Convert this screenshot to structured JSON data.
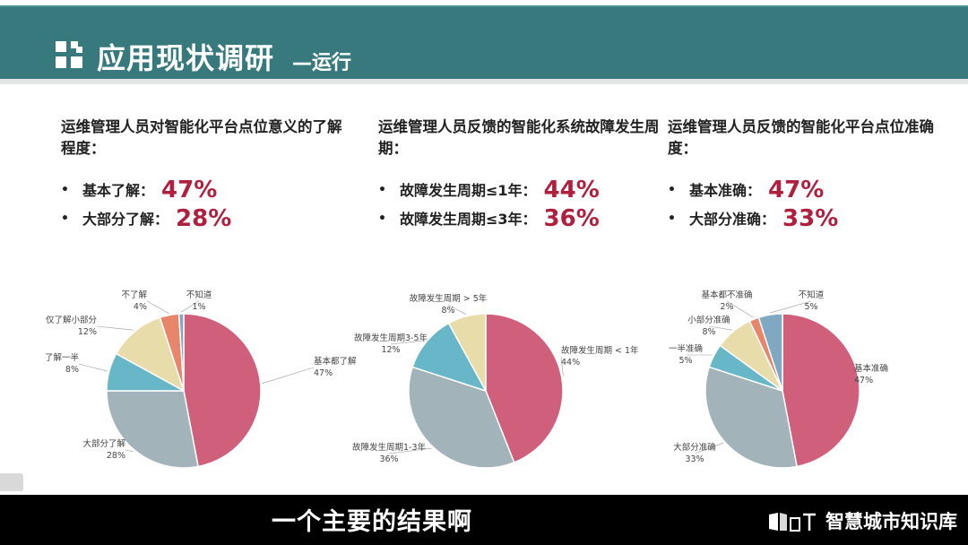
{
  "header": {
    "title": "应用现状调研",
    "subtitle": "—运行"
  },
  "columns": [
    {
      "question": "运维管理人员对智能化平台点位意义的了解程度：",
      "items": [
        {
          "label": "基本了解：",
          "pct": "47%"
        },
        {
          "label": "大部分了解：",
          "pct": "28%"
        }
      ]
    },
    {
      "question": "运维管理人员反馈的智能化系统故障发生周期：",
      "items": [
        {
          "label": "故障发生周期≤1年：",
          "pct": "44%"
        },
        {
          "label": "故障发生周期≤3年：",
          "pct": "36%"
        }
      ]
    },
    {
      "question": "运维管理人员反馈的智能化平台点位准确度：",
      "items": [
        {
          "label": "基本准确：",
          "pct": "47%"
        },
        {
          "label": "大部分准确：",
          "pct": "33%"
        }
      ]
    }
  ],
  "chart_data": [
    {
      "type": "pie",
      "title": "",
      "labels": [
        "基本都了解",
        "大部分了解",
        "了解一半",
        "仅了解小部分",
        "不了解",
        "不知道"
      ],
      "values": [
        47,
        28,
        8,
        12,
        4,
        1
      ],
      "value_labels": [
        "47%",
        "28%",
        "8%",
        "12%",
        "4%",
        "1%"
      ],
      "colors": [
        "#cf5f7a",
        "#a2b3b9",
        "#67b7c8",
        "#e8dcaa",
        "#e8866c",
        "#7fa9c2"
      ]
    },
    {
      "type": "pie",
      "title": "",
      "labels": [
        "故障发生周期 < 1年",
        "故障发生周期1-3年",
        "故障发生周期3-5年",
        "故障发生周期 > 5年"
      ],
      "values": [
        44,
        36,
        12,
        8
      ],
      "value_labels": [
        "44%",
        "36%",
        "12%",
        "8%"
      ],
      "colors": [
        "#cf5f7a",
        "#a2b3b9",
        "#67b7c8",
        "#e8dcaa"
      ]
    },
    {
      "type": "pie",
      "title": "",
      "labels": [
        "基本准确",
        "大部分准确",
        "一半准确",
        "小部分准确",
        "基本都不准确",
        "不知道"
      ],
      "values": [
        47,
        33,
        5,
        8,
        2,
        5
      ],
      "value_labels": [
        "47%",
        "33%",
        "5%",
        "8%",
        "2%",
        "5%"
      ],
      "colors": [
        "#cf5f7a",
        "#a2b3b9",
        "#67b7c8",
        "#e8dcaa",
        "#e8866c",
        "#7fa9c2"
      ]
    }
  ],
  "caption": "一个主要的结果啊",
  "brand": {
    "text": "智慧城市知识库",
    "icon": "book-logo-icon"
  },
  "colors": {
    "header_band": "#37797d",
    "accent_pct": "#b0203e"
  }
}
